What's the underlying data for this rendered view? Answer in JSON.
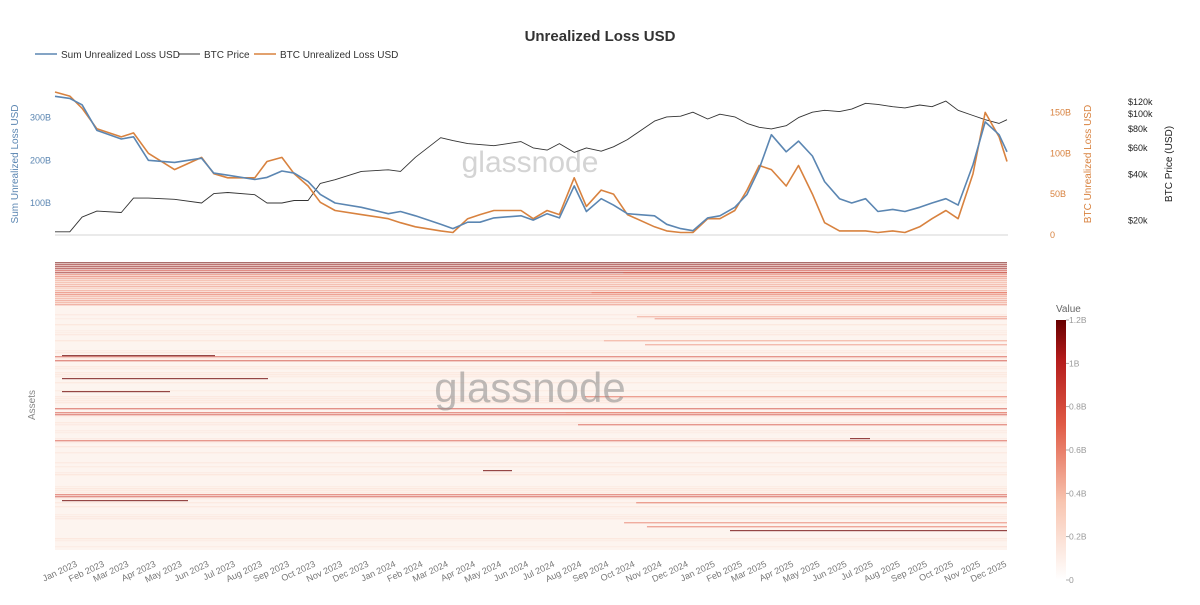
{
  "title": "Unrealized Loss USD",
  "watermark": "glassnode",
  "colors": {
    "sum_line": "#5b86b2",
    "btc_price_line": "#333333",
    "btc_loss_line": "#d8823f",
    "heat_low": "#fdf3ee",
    "heat_high": "#6b0a0a"
  },
  "chart_data": [
    {
      "type": "line",
      "title": "Unrealized Loss USD",
      "legend": "top-left",
      "xlabels": [
        "Jan 2023",
        "Feb 2023",
        "Mar 2023",
        "Apr 2023",
        "May 2023",
        "Jun 2023",
        "Jul 2023",
        "Aug 2023",
        "Sep 2023",
        "Oct 2023",
        "Nov 2023",
        "Dec 2023",
        "Jan 2024",
        "Feb 2024",
        "Mar 2024",
        "Apr 2024",
        "May 2024",
        "Jun 2024",
        "Jul 2024",
        "Aug 2024",
        "Sep 2024",
        "Oct 2024",
        "Nov 2024",
        "Dec 2024",
        "Jan 2025",
        "Feb 2025",
        "Mar 2025",
        "Apr 2025",
        "May 2025",
        "Jun 2025",
        "Jul 2025",
        "Aug 2025",
        "Sep 2025",
        "Oct 2025",
        "Nov 2025",
        "Dec 2025"
      ],
      "x": [
        "2022-12-15",
        "2023-01-01",
        "2023-01-15",
        "2023-02-01",
        "2023-03-01",
        "2023-03-15",
        "2023-04-01",
        "2023-05-01",
        "2023-06-01",
        "2023-06-15",
        "2023-07-01",
        "2023-08-01",
        "2023-08-15",
        "2023-09-01",
        "2023-09-15",
        "2023-10-01",
        "2023-10-15",
        "2023-11-01",
        "2023-12-01",
        "2024-01-01",
        "2024-01-15",
        "2024-02-01",
        "2024-03-01",
        "2024-03-15",
        "2024-04-01",
        "2024-04-15",
        "2024-05-01",
        "2024-06-01",
        "2024-06-15",
        "2024-07-01",
        "2024-07-15",
        "2024-08-01",
        "2024-08-15",
        "2024-09-01",
        "2024-09-15",
        "2024-10-01",
        "2024-11-01",
        "2024-11-15",
        "2024-12-01",
        "2024-12-15",
        "2025-01-01",
        "2025-01-15",
        "2025-02-01",
        "2025-02-15",
        "2025-03-01",
        "2025-03-15",
        "2025-04-01",
        "2025-04-15",
        "2025-05-01",
        "2025-05-15",
        "2025-06-01",
        "2025-06-15",
        "2025-07-01",
        "2025-07-15",
        "2025-08-01",
        "2025-08-15",
        "2025-09-01",
        "2025-09-15",
        "2025-10-01",
        "2025-10-15",
        "2025-11-01",
        "2025-11-15",
        "2025-12-01",
        "2025-12-10"
      ],
      "left_axis": {
        "label": "Sum Unrealized Loss USD",
        "ticks": [
          "100B",
          "200B",
          "300B"
        ],
        "tick_values": [
          100,
          200,
          300
        ],
        "range": [
          25,
          360
        ]
      },
      "right_axis": {
        "label": "BTC Unrealized Loss USD",
        "ticks": [
          "0",
          "50B",
          "100B",
          "150B"
        ],
        "tick_values": [
          0,
          50,
          100,
          150
        ],
        "range": [
          0,
          175
        ]
      },
      "price_axis": {
        "label": "BTC Price (USD)",
        "ticks": [
          "$20k",
          "$40k",
          "$60k",
          "$80k",
          "$100k",
          "$120k"
        ],
        "tick_values": [
          20000,
          40000,
          60000,
          80000,
          100000,
          120000
        ],
        "log": true,
        "range": [
          16000,
          140000
        ]
      },
      "series": [
        {
          "name": "Sum Unrealized Loss USD",
          "axis": "left",
          "values": [
            350,
            345,
            330,
            270,
            250,
            255,
            200,
            195,
            205,
            170,
            165,
            155,
            160,
            175,
            170,
            150,
            120,
            100,
            90,
            75,
            80,
            70,
            50,
            40,
            55,
            55,
            65,
            70,
            60,
            75,
            65,
            140,
            80,
            110,
            95,
            75,
            70,
            50,
            40,
            35,
            65,
            70,
            90,
            120,
            180,
            260,
            220,
            245,
            210,
            150,
            110,
            100,
            110,
            80,
            85,
            80,
            90,
            100,
            110,
            95,
            190,
            290,
            260,
            220
          ]
        },
        {
          "name": "BTC Price",
          "axis": "price",
          "values": [
            16800,
            16800,
            21000,
            23000,
            22500,
            28000,
            28000,
            27500,
            26000,
            30000,
            30500,
            29500,
            26000,
            26000,
            27000,
            27000,
            35000,
            37000,
            42000,
            43000,
            42000,
            52000,
            70000,
            67000,
            64000,
            63000,
            62000,
            66000,
            60000,
            58000,
            64000,
            56000,
            60000,
            57000,
            61000,
            68000,
            90000,
            96000,
            97000,
            103000,
            93000,
            100000,
            96000,
            87000,
            82000,
            80000,
            84000,
            95000,
            103000,
            106000,
            104000,
            108000,
            118000,
            116000,
            112000,
            110000,
            115000,
            112000,
            122000,
            106000,
            98000,
            92000,
            87000,
            92000
          ]
        },
        {
          "name": "BTC Unrealized Loss USD",
          "axis": "right",
          "values": [
            175,
            170,
            155,
            130,
            120,
            125,
            100,
            80,
            95,
            75,
            70,
            70,
            90,
            95,
            75,
            60,
            40,
            30,
            25,
            20,
            15,
            10,
            5,
            3,
            20,
            25,
            30,
            30,
            20,
            30,
            25,
            70,
            35,
            55,
            50,
            25,
            10,
            5,
            3,
            3,
            20,
            20,
            30,
            55,
            85,
            80,
            60,
            85,
            50,
            15,
            5,
            5,
            5,
            3,
            5,
            3,
            10,
            20,
            30,
            20,
            75,
            150,
            120,
            90
          ]
        }
      ]
    },
    {
      "type": "heatmap",
      "ylabel": "Assets",
      "colorbar": {
        "title": "Value",
        "ticks": [
          "0",
          "0.2B",
          "0.4B",
          "0.6B",
          "0.8B",
          "1B",
          "1.2B"
        ],
        "tick_values": [
          0,
          0.2,
          0.4,
          0.6,
          0.8,
          1.0,
          1.2
        ],
        "range": [
          0,
          1.2
        ]
      }
    }
  ]
}
